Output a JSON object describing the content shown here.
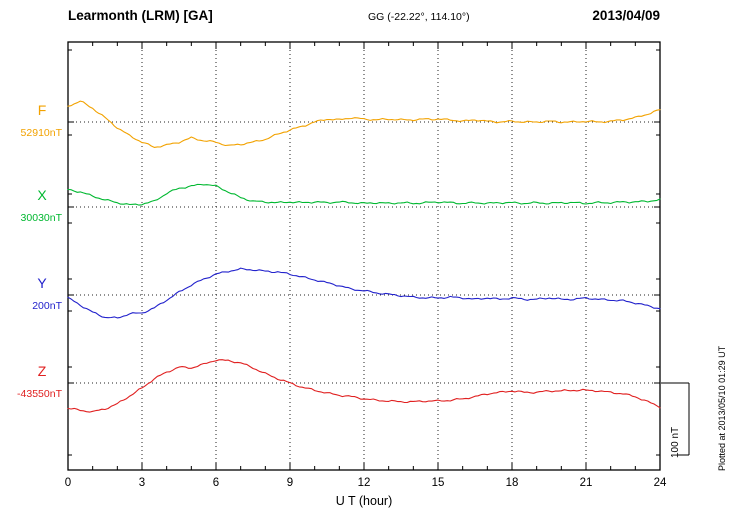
{
  "header": {
    "station": "Learmonth (LRM)  [GA]",
    "coords": "GG (-22.22°, 114.10°)",
    "date": "2013/04/09"
  },
  "axis": {
    "x_label": "U T (hour)",
    "x_ticks": [
      0,
      3,
      6,
      9,
      12,
      15,
      18,
      21,
      24
    ]
  },
  "scale_bar": {
    "label": "100 nT",
    "nT": 100
  },
  "footer_note": "Plotted at 2013/05/10 01:29 UT",
  "chart_data": {
    "type": "line",
    "title": "Learmonth (LRM) [GA] magnetogram 2013/04/09",
    "xlabel": "U T (hour)",
    "x_range": [
      0,
      24
    ],
    "x_ticks": [
      0,
      3,
      6,
      9,
      12,
      15,
      18,
      21,
      24
    ],
    "grid": "dotted vertical every 3 hours, dotted horizontal at each component baseline",
    "scale_division_nT": 100,
    "sample_step_hours": 0.5,
    "series": [
      {
        "name": "F",
        "baseline_label": "52910nT",
        "baseline_nT": 52910,
        "color": "#f2a200",
        "offsets_nT": [
          22,
          29,
          19,
          6,
          -8,
          -19,
          -28,
          -35,
          -32,
          -28,
          -22,
          -26,
          -28,
          -33,
          -31,
          -28,
          -24,
          -17,
          -11,
          -6,
          0,
          4,
          3,
          6,
          4,
          3,
          4,
          3,
          3,
          4,
          4,
          3,
          1,
          3,
          1,
          0,
          1,
          0,
          0,
          1,
          0,
          0,
          1,
          0,
          1,
          3,
          6,
          11,
          17
        ]
      },
      {
        "name": "X",
        "baseline_label": "30030nT",
        "baseline_nT": 30030,
        "color": "#00b830",
        "offsets_nT": [
          24,
          21,
          15,
          10,
          6,
          3,
          4,
          8,
          19,
          26,
          29,
          32,
          29,
          21,
          13,
          8,
          7,
          6,
          7,
          6,
          7,
          6,
          7,
          6,
          5,
          6,
          5,
          6,
          5,
          6,
          7,
          6,
          5,
          6,
          5,
          6,
          6,
          5,
          6,
          5,
          6,
          6,
          5,
          6,
          6,
          7,
          7,
          8,
          10
        ]
      },
      {
        "name": "Y",
        "baseline_label": "200nT",
        "baseline_nT": 200,
        "color": "#2222cc",
        "offsets_nT": [
          -4,
          -14,
          -24,
          -31,
          -32,
          -26,
          -25,
          -18,
          -7,
          4,
          14,
          22,
          29,
          33,
          36,
          35,
          33,
          32,
          29,
          25,
          21,
          17,
          13,
          8,
          6,
          3,
          1,
          -1,
          -3,
          -4,
          -4,
          -3,
          -4,
          -6,
          -4,
          -6,
          -4,
          -6,
          -6,
          -4,
          -6,
          -6,
          -4,
          -6,
          -7,
          -8,
          -11,
          -15,
          -19
        ]
      },
      {
        "name": "Z",
        "baseline_label": "-43550nT",
        "baseline_nT": -43550,
        "color": "#e02020",
        "offsets_nT": [
          -35,
          -38,
          -40,
          -36,
          -29,
          -18,
          -7,
          6,
          15,
          22,
          21,
          26,
          32,
          31,
          28,
          21,
          13,
          6,
          0,
          -6,
          -10,
          -14,
          -17,
          -19,
          -22,
          -24,
          -25,
          -26,
          -26,
          -25,
          -25,
          -24,
          -22,
          -19,
          -15,
          -13,
          -11,
          -13,
          -13,
          -11,
          -11,
          -10,
          -10,
          -11,
          -13,
          -15,
          -19,
          -26,
          -33
        ]
      }
    ]
  }
}
